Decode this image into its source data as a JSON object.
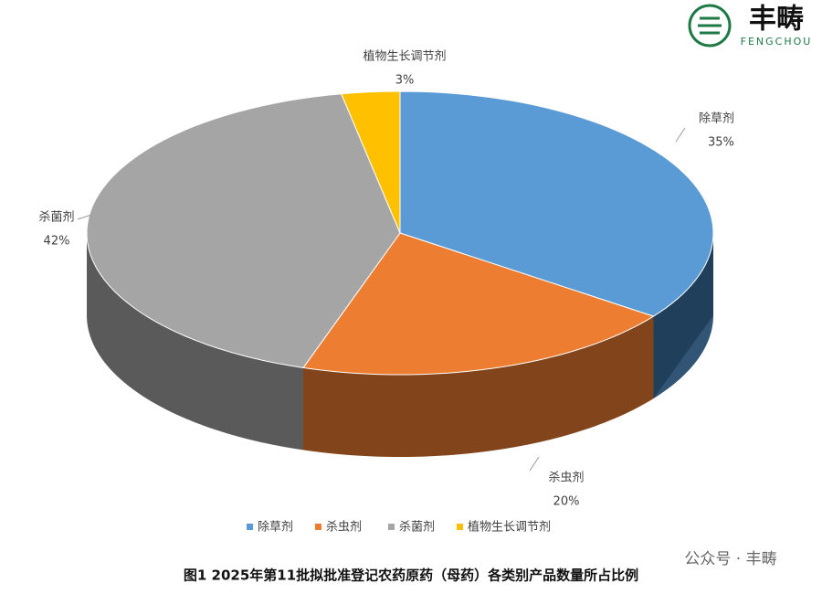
{
  "chart_data": {
    "type": "pie3d",
    "title": "图1  2025年第11批拟批准登记农药原药（母药）各类别产品数量所占比例",
    "categories": [
      "除草剂",
      "杀虫剂",
      "杀菌剂",
      "植物生长调节剂"
    ],
    "values": [
      35,
      20,
      42,
      3
    ],
    "value_labels": [
      "35%",
      "20%",
      "42%",
      "3%"
    ],
    "colors": [
      "#5b9bd5",
      "#ed7d31",
      "#a5a5a5",
      "#ffc000"
    ],
    "legend": "bottom"
  },
  "logo": {
    "name": "丰畴",
    "subtitle": "FENGCHOU"
  },
  "watermark": "公众号 · 丰畴"
}
